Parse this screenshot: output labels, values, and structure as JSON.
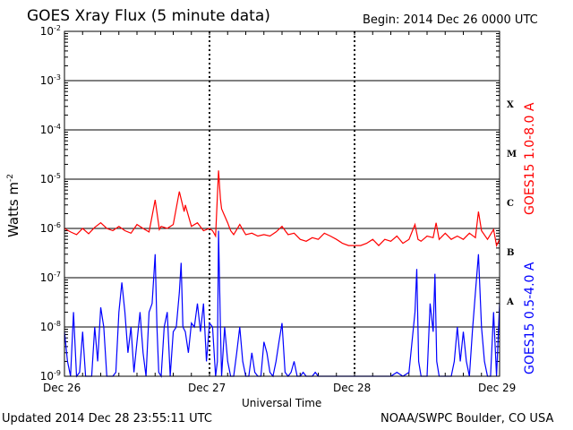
{
  "header": {
    "title": "GOES Xray Flux (5 minute data)",
    "begin": "Begin:  2014 Dec 26 0000 UTC"
  },
  "footer": {
    "updated": "Updated 2014 Dec 28 23:55:11 UTC",
    "credit": "NOAA/SWPC Boulder, CO USA"
  },
  "colors": {
    "long": "#ff0000",
    "short": "#0000ff",
    "grid": "#000000"
  },
  "chart_data": {
    "type": "line",
    "title": "GOES Xray Flux (5 minute data)",
    "xlabel": "Universal Time",
    "ylabel": {
      "base": "Watts m",
      "exp": "-2"
    },
    "log_y": true,
    "ylim": [
      1e-09,
      0.01
    ],
    "xlim": [
      0,
      72
    ],
    "x_unit": "hours since 2014 Dec 26 0000 UTC",
    "x_ticks": [
      {
        "x": 0,
        "label": "Dec 26"
      },
      {
        "x": 24,
        "label": "Dec 27"
      },
      {
        "x": 48,
        "label": "Dec 28"
      },
      {
        "x": 72,
        "label": "Dec 29"
      }
    ],
    "y_ticks": [
      {
        "base": "10",
        "exp": "-2",
        "value": 0.01
      },
      {
        "base": "10",
        "exp": "-3",
        "value": 0.001
      },
      {
        "base": "10",
        "exp": "-4",
        "value": 0.0001
      },
      {
        "base": "10",
        "exp": "-5",
        "value": 1e-05
      },
      {
        "base": "10",
        "exp": "-6",
        "value": 1e-06
      },
      {
        "base": "10",
        "exp": "-7",
        "value": 1e-07
      },
      {
        "base": "10",
        "exp": "-8",
        "value": 1e-08
      },
      {
        "base": "10",
        "exp": "-9",
        "value": 1e-09
      }
    ],
    "flare_classes": [
      {
        "label": "X",
        "value": 0.000316
      },
      {
        "label": "M",
        "value": 3.16e-05
      },
      {
        "label": "C",
        "value": 3.16e-06
      },
      {
        "label": "B",
        "value": 3.16e-07
      },
      {
        "label": "A",
        "value": 3.16e-08
      }
    ],
    "grid": true,
    "series": [
      {
        "name": "GOES15 1.0-8.0 A",
        "color": "#ff0000",
        "points": [
          [
            0,
            1e-06
          ],
          [
            1,
            8.5e-07
          ],
          [
            2,
            7.5e-07
          ],
          [
            3,
            1e-06
          ],
          [
            4,
            7.8e-07
          ],
          [
            5,
            1.05e-06
          ],
          [
            6,
            1.3e-06
          ],
          [
            7,
            1e-06
          ],
          [
            8,
            9e-07
          ],
          [
            9,
            1.1e-06
          ],
          [
            10,
            9e-07
          ],
          [
            11,
            8e-07
          ],
          [
            12,
            1.2e-06
          ],
          [
            13,
            1e-06
          ],
          [
            14,
            8.5e-07
          ],
          [
            15,
            3.8e-06
          ],
          [
            15.7,
            9.5e-07
          ],
          [
            16,
            1.1e-06
          ],
          [
            17,
            1e-06
          ],
          [
            18,
            1.2e-06
          ],
          [
            19,
            5.6e-06
          ],
          [
            19.8,
            2.2e-06
          ],
          [
            20,
            3e-06
          ],
          [
            21,
            1.1e-06
          ],
          [
            22,
            1.3e-06
          ],
          [
            23,
            9e-07
          ],
          [
            24,
            1e-06
          ],
          [
            24.5,
            9e-07
          ],
          [
            25,
            7e-07
          ],
          [
            25.5,
            1.5e-05
          ],
          [
            25.8,
            4e-06
          ],
          [
            26,
            2.5e-06
          ],
          [
            27,
            1.3e-06
          ],
          [
            27.5,
            9e-07
          ],
          [
            28,
            7.5e-07
          ],
          [
            29,
            1.2e-06
          ],
          [
            30,
            7.5e-07
          ],
          [
            31,
            8e-07
          ],
          [
            32,
            7e-07
          ],
          [
            33,
            7.5e-07
          ],
          [
            34,
            7e-07
          ],
          [
            35,
            8.5e-07
          ],
          [
            36,
            1.1e-06
          ],
          [
            37,
            7.5e-07
          ],
          [
            38,
            8e-07
          ],
          [
            39,
            6e-07
          ],
          [
            40,
            5.5e-07
          ],
          [
            41,
            6.5e-07
          ],
          [
            42,
            6e-07
          ],
          [
            43,
            8e-07
          ],
          [
            44,
            7e-07
          ],
          [
            45,
            6e-07
          ],
          [
            46,
            5e-07
          ],
          [
            47,
            4.5e-07
          ],
          [
            48,
            4.5e-07
          ],
          [
            49,
            4.5e-07
          ],
          [
            50,
            5e-07
          ],
          [
            51,
            6e-07
          ],
          [
            52,
            4.5e-07
          ],
          [
            53,
            6e-07
          ],
          [
            54,
            5.5e-07
          ],
          [
            55,
            7e-07
          ],
          [
            56,
            5e-07
          ],
          [
            57,
            6e-07
          ],
          [
            58,
            1.2e-06
          ],
          [
            58.5,
            6e-07
          ],
          [
            59,
            5.5e-07
          ],
          [
            60,
            7e-07
          ],
          [
            61,
            6.5e-07
          ],
          [
            61.5,
            1.3e-06
          ],
          [
            62,
            6e-07
          ],
          [
            63,
            8e-07
          ],
          [
            64,
            6e-07
          ],
          [
            65,
            7e-07
          ],
          [
            66,
            6e-07
          ],
          [
            67,
            8e-07
          ],
          [
            68,
            6.5e-07
          ],
          [
            68.5,
            2.2e-06
          ],
          [
            69,
            9e-07
          ],
          [
            70,
            6e-07
          ],
          [
            71,
            9.5e-07
          ],
          [
            71.5,
            4.5e-07
          ],
          [
            72,
            6e-07
          ]
        ]
      },
      {
        "name": "GOES15 0.5-4.0 A",
        "color": "#0000ff",
        "points": [
          [
            0,
            8e-09
          ],
          [
            0.5,
            2e-09
          ],
          [
            1,
            1e-09
          ],
          [
            1.5,
            2e-08
          ],
          [
            2,
            1e-09
          ],
          [
            2.5,
            1.2e-09
          ],
          [
            3,
            8e-09
          ],
          [
            3.5,
            1e-09
          ],
          [
            4,
            1e-09
          ],
          [
            4.5,
            1e-09
          ],
          [
            5,
            1e-08
          ],
          [
            5.5,
            2e-09
          ],
          [
            6,
            2.5e-08
          ],
          [
            6.5,
            1e-08
          ],
          [
            7,
            1e-09
          ],
          [
            7.5,
            1e-09
          ],
          [
            8,
            1e-09
          ],
          [
            8.5,
            1.2e-09
          ],
          [
            9,
            2e-08
          ],
          [
            9.5,
            8e-08
          ],
          [
            10,
            2e-08
          ],
          [
            10.5,
            3e-09
          ],
          [
            11,
            1e-08
          ],
          [
            11.5,
            1.2e-09
          ],
          [
            12,
            5e-09
          ],
          [
            12.5,
            2e-08
          ],
          [
            13,
            3e-09
          ],
          [
            13.5,
            1e-09
          ],
          [
            14,
            2e-08
          ],
          [
            14.5,
            3e-08
          ],
          [
            15,
            3e-07
          ],
          [
            15.3,
            1e-08
          ],
          [
            15.6,
            1.2e-09
          ],
          [
            16,
            1e-09
          ],
          [
            16.5,
            1e-08
          ],
          [
            17,
            2e-08
          ],
          [
            17.5,
            1e-09
          ],
          [
            18,
            8e-09
          ],
          [
            18.5,
            1e-08
          ],
          [
            19,
            5e-08
          ],
          [
            19.3,
            2e-07
          ],
          [
            19.6,
            1e-08
          ],
          [
            20,
            8e-09
          ],
          [
            20.5,
            3e-09
          ],
          [
            21,
            1.2e-08
          ],
          [
            21.5,
            1e-08
          ],
          [
            22,
            3e-08
          ],
          [
            22.5,
            8e-09
          ],
          [
            23,
            3e-08
          ],
          [
            23.5,
            2e-09
          ],
          [
            24,
            1.2e-08
          ],
          [
            24.5,
            1e-08
          ],
          [
            25,
            1e-09
          ],
          [
            25.3,
            2e-09
          ],
          [
            25.5,
            9e-07
          ],
          [
            25.8,
            1e-08
          ],
          [
            26,
            1e-09
          ],
          [
            26.5,
            1e-08
          ],
          [
            27,
            2e-09
          ],
          [
            27.5,
            1e-09
          ],
          [
            28,
            1e-09
          ],
          [
            28.5,
            3e-09
          ],
          [
            29,
            1e-08
          ],
          [
            29.5,
            2e-09
          ],
          [
            30,
            1e-09
          ],
          [
            30.5,
            1e-09
          ],
          [
            31,
            3e-09
          ],
          [
            31.5,
            1.2e-09
          ],
          [
            32,
            1e-09
          ],
          [
            32.5,
            1e-09
          ],
          [
            33,
            5e-09
          ],
          [
            33.5,
            3e-09
          ],
          [
            34,
            1.2e-09
          ],
          [
            34.5,
            1e-09
          ],
          [
            35,
            2e-09
          ],
          [
            35.5,
            5e-09
          ],
          [
            36,
            1.2e-08
          ],
          [
            36.5,
            1.2e-09
          ],
          [
            37,
            1e-09
          ],
          [
            37.5,
            1.2e-09
          ],
          [
            38,
            2e-09
          ],
          [
            38.5,
            1e-09
          ],
          [
            39,
            1e-09
          ],
          [
            39.5,
            1.2e-09
          ],
          [
            40,
            1e-09
          ],
          [
            40.5,
            1e-09
          ],
          [
            41,
            1e-09
          ],
          [
            41.5,
            1.2e-09
          ],
          [
            42,
            1e-09
          ],
          [
            43,
            1e-09
          ],
          [
            44,
            1e-09
          ],
          [
            45,
            1e-09
          ],
          [
            46,
            1e-09
          ],
          [
            47,
            1e-09
          ],
          [
            48,
            1e-09
          ],
          [
            49,
            1e-09
          ],
          [
            50,
            1e-09
          ],
          [
            51,
            1e-09
          ],
          [
            52,
            1e-09
          ],
          [
            53,
            1e-09
          ],
          [
            54,
            1e-09
          ],
          [
            55,
            1.2e-09
          ],
          [
            56,
            1e-09
          ],
          [
            57,
            1.2e-09
          ],
          [
            58,
            2e-08
          ],
          [
            58.3,
            1.5e-07
          ],
          [
            58.6,
            2e-09
          ],
          [
            59,
            1e-09
          ],
          [
            59.5,
            1e-09
          ],
          [
            60,
            1e-09
          ],
          [
            60.5,
            3e-08
          ],
          [
            61,
            8e-09
          ],
          [
            61.3,
            1.2e-07
          ],
          [
            61.6,
            2e-09
          ],
          [
            62,
            1e-09
          ],
          [
            62.5,
            1e-09
          ],
          [
            63,
            1e-09
          ],
          [
            63.5,
            1e-09
          ],
          [
            64,
            1e-09
          ],
          [
            64.5,
            2e-09
          ],
          [
            65,
            1e-08
          ],
          [
            65.5,
            2e-09
          ],
          [
            66,
            8e-09
          ],
          [
            66.5,
            2e-09
          ],
          [
            67,
            1e-09
          ],
          [
            67.5,
            8e-09
          ],
          [
            68,
            5e-08
          ],
          [
            68.5,
            3e-07
          ],
          [
            69,
            1e-08
          ],
          [
            69.5,
            2e-09
          ],
          [
            70,
            1e-09
          ],
          [
            70.5,
            1e-09
          ],
          [
            71,
            2e-08
          ],
          [
            71.5,
            1e-09
          ],
          [
            72,
            3e-08
          ]
        ]
      }
    ]
  }
}
